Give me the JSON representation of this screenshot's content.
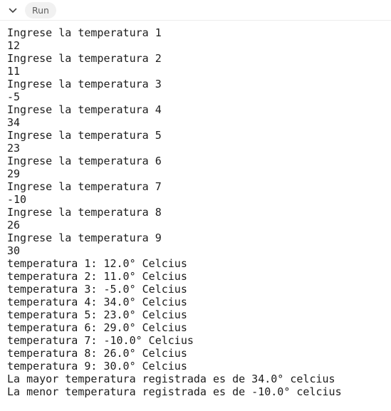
{
  "toolbar": {
    "collapse_icon": "chevron-down-icon",
    "run_label": "Run"
  },
  "console": {
    "lines": [
      "Ingrese la temperatura 1",
      "12",
      "Ingrese la temperatura 2",
      "11",
      "Ingrese la temperatura 3",
      "-5",
      "Ingrese la temperatura 4",
      "34",
      "Ingrese la temperatura 5",
      "23",
      "Ingrese la temperatura 6",
      "29",
      "Ingrese la temperatura 7",
      "-10",
      "Ingrese la temperatura 8",
      "26",
      "Ingrese la temperatura 9",
      "30",
      "temperatura 1: 12.0° Celcius",
      "temperatura 2: 11.0° Celcius",
      "temperatura 3: -5.0° Celcius",
      "temperatura 4: 34.0° Celcius",
      "temperatura 5: 23.0° Celcius",
      "temperatura 6: 29.0° Celcius",
      "temperatura 7: -10.0° Celcius",
      "temperatura 8: 26.0° Celcius",
      "temperatura 9: 30.0° Celcius",
      "La mayor temperatura registrada es de 34.0° celcius",
      "La menor temperatura registrada es de -10.0° celcius"
    ]
  },
  "colors": {
    "text": "#1c1c1c",
    "button_bg": "#f1f1f1",
    "button_text": "#5f5f5f",
    "background": "#ffffff"
  }
}
